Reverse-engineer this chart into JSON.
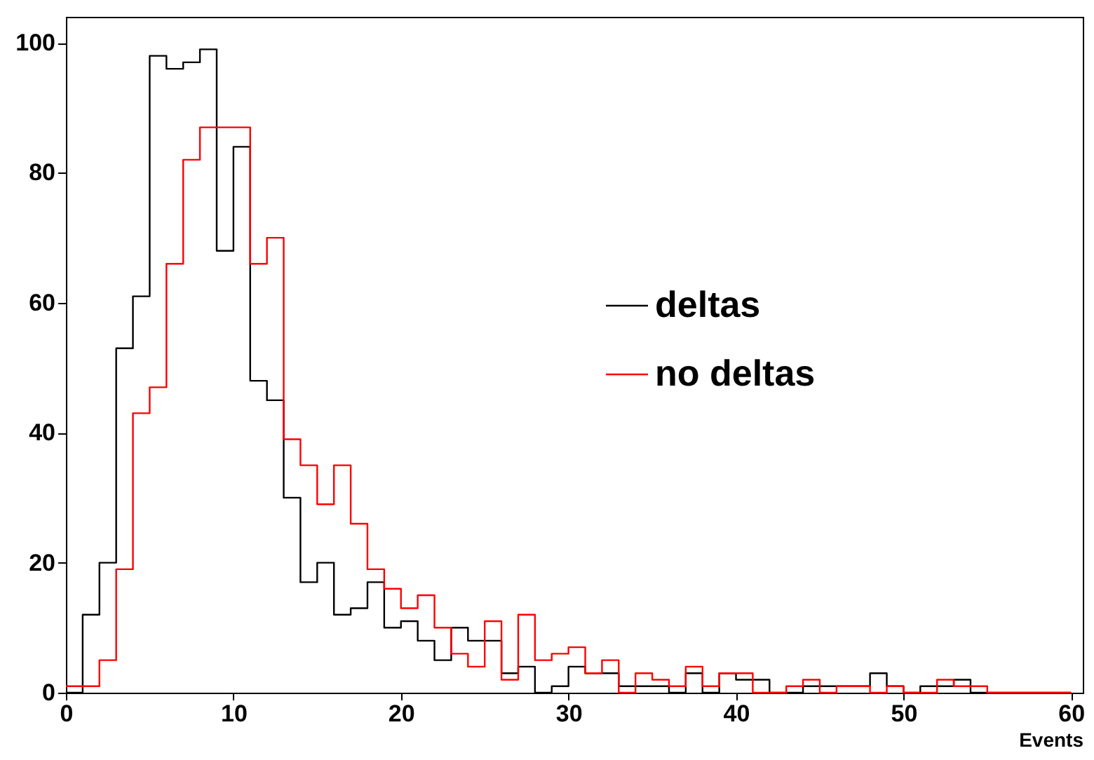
{
  "chart_data": {
    "type": "histogram",
    "xlabel": "Events",
    "bins": [
      0,
      1,
      2,
      3,
      4,
      5,
      6,
      7,
      8,
      9,
      10,
      11,
      12,
      13,
      14,
      15,
      16,
      17,
      18,
      19,
      20,
      21,
      22,
      23,
      24,
      25,
      26,
      27,
      28,
      29,
      30,
      31,
      32,
      33,
      34,
      35,
      36,
      37,
      38,
      39,
      40,
      41,
      42,
      43,
      44,
      45,
      46,
      47,
      48,
      49,
      50,
      51,
      52,
      53,
      54,
      55,
      56,
      57,
      58,
      59,
      60
    ],
    "series": [
      {
        "name": "deltas",
        "color": "#000000",
        "values": [
          0,
          12,
          20,
          53,
          61,
          98,
          96,
          97,
          99,
          68,
          84,
          48,
          45,
          30,
          17,
          20,
          12,
          13,
          17,
          10,
          11,
          8,
          5,
          10,
          8,
          8,
          3,
          4,
          0,
          1,
          4,
          3,
          3,
          1,
          1,
          1,
          0,
          3,
          0,
          3,
          2,
          2,
          0,
          0,
          1,
          1,
          1,
          1,
          3,
          1,
          0,
          1,
          1,
          2,
          0,
          0,
          0,
          0,
          0,
          0
        ]
      },
      {
        "name": "no deltas",
        "color": "#ff0000",
        "values": [
          1,
          1,
          5,
          19,
          43,
          47,
          66,
          82,
          87,
          87,
          87,
          66,
          70,
          39,
          35,
          29,
          35,
          26,
          19,
          16,
          13,
          15,
          10,
          6,
          4,
          11,
          2,
          12,
          5,
          6,
          7,
          3,
          5,
          0,
          3,
          2,
          1,
          4,
          1,
          3,
          3,
          0,
          0,
          1,
          2,
          0,
          1,
          1,
          0,
          1,
          0,
          0,
          2,
          1,
          1,
          0,
          0,
          0,
          0,
          0
        ]
      }
    ],
    "xlim": [
      0,
      60.7
    ],
    "ylim": [
      0,
      104
    ],
    "xticks": [
      0,
      10,
      20,
      30,
      40,
      50,
      60
    ],
    "yticks": [
      0,
      20,
      40,
      60,
      80,
      100
    ],
    "grid": false,
    "legend": "top right"
  }
}
